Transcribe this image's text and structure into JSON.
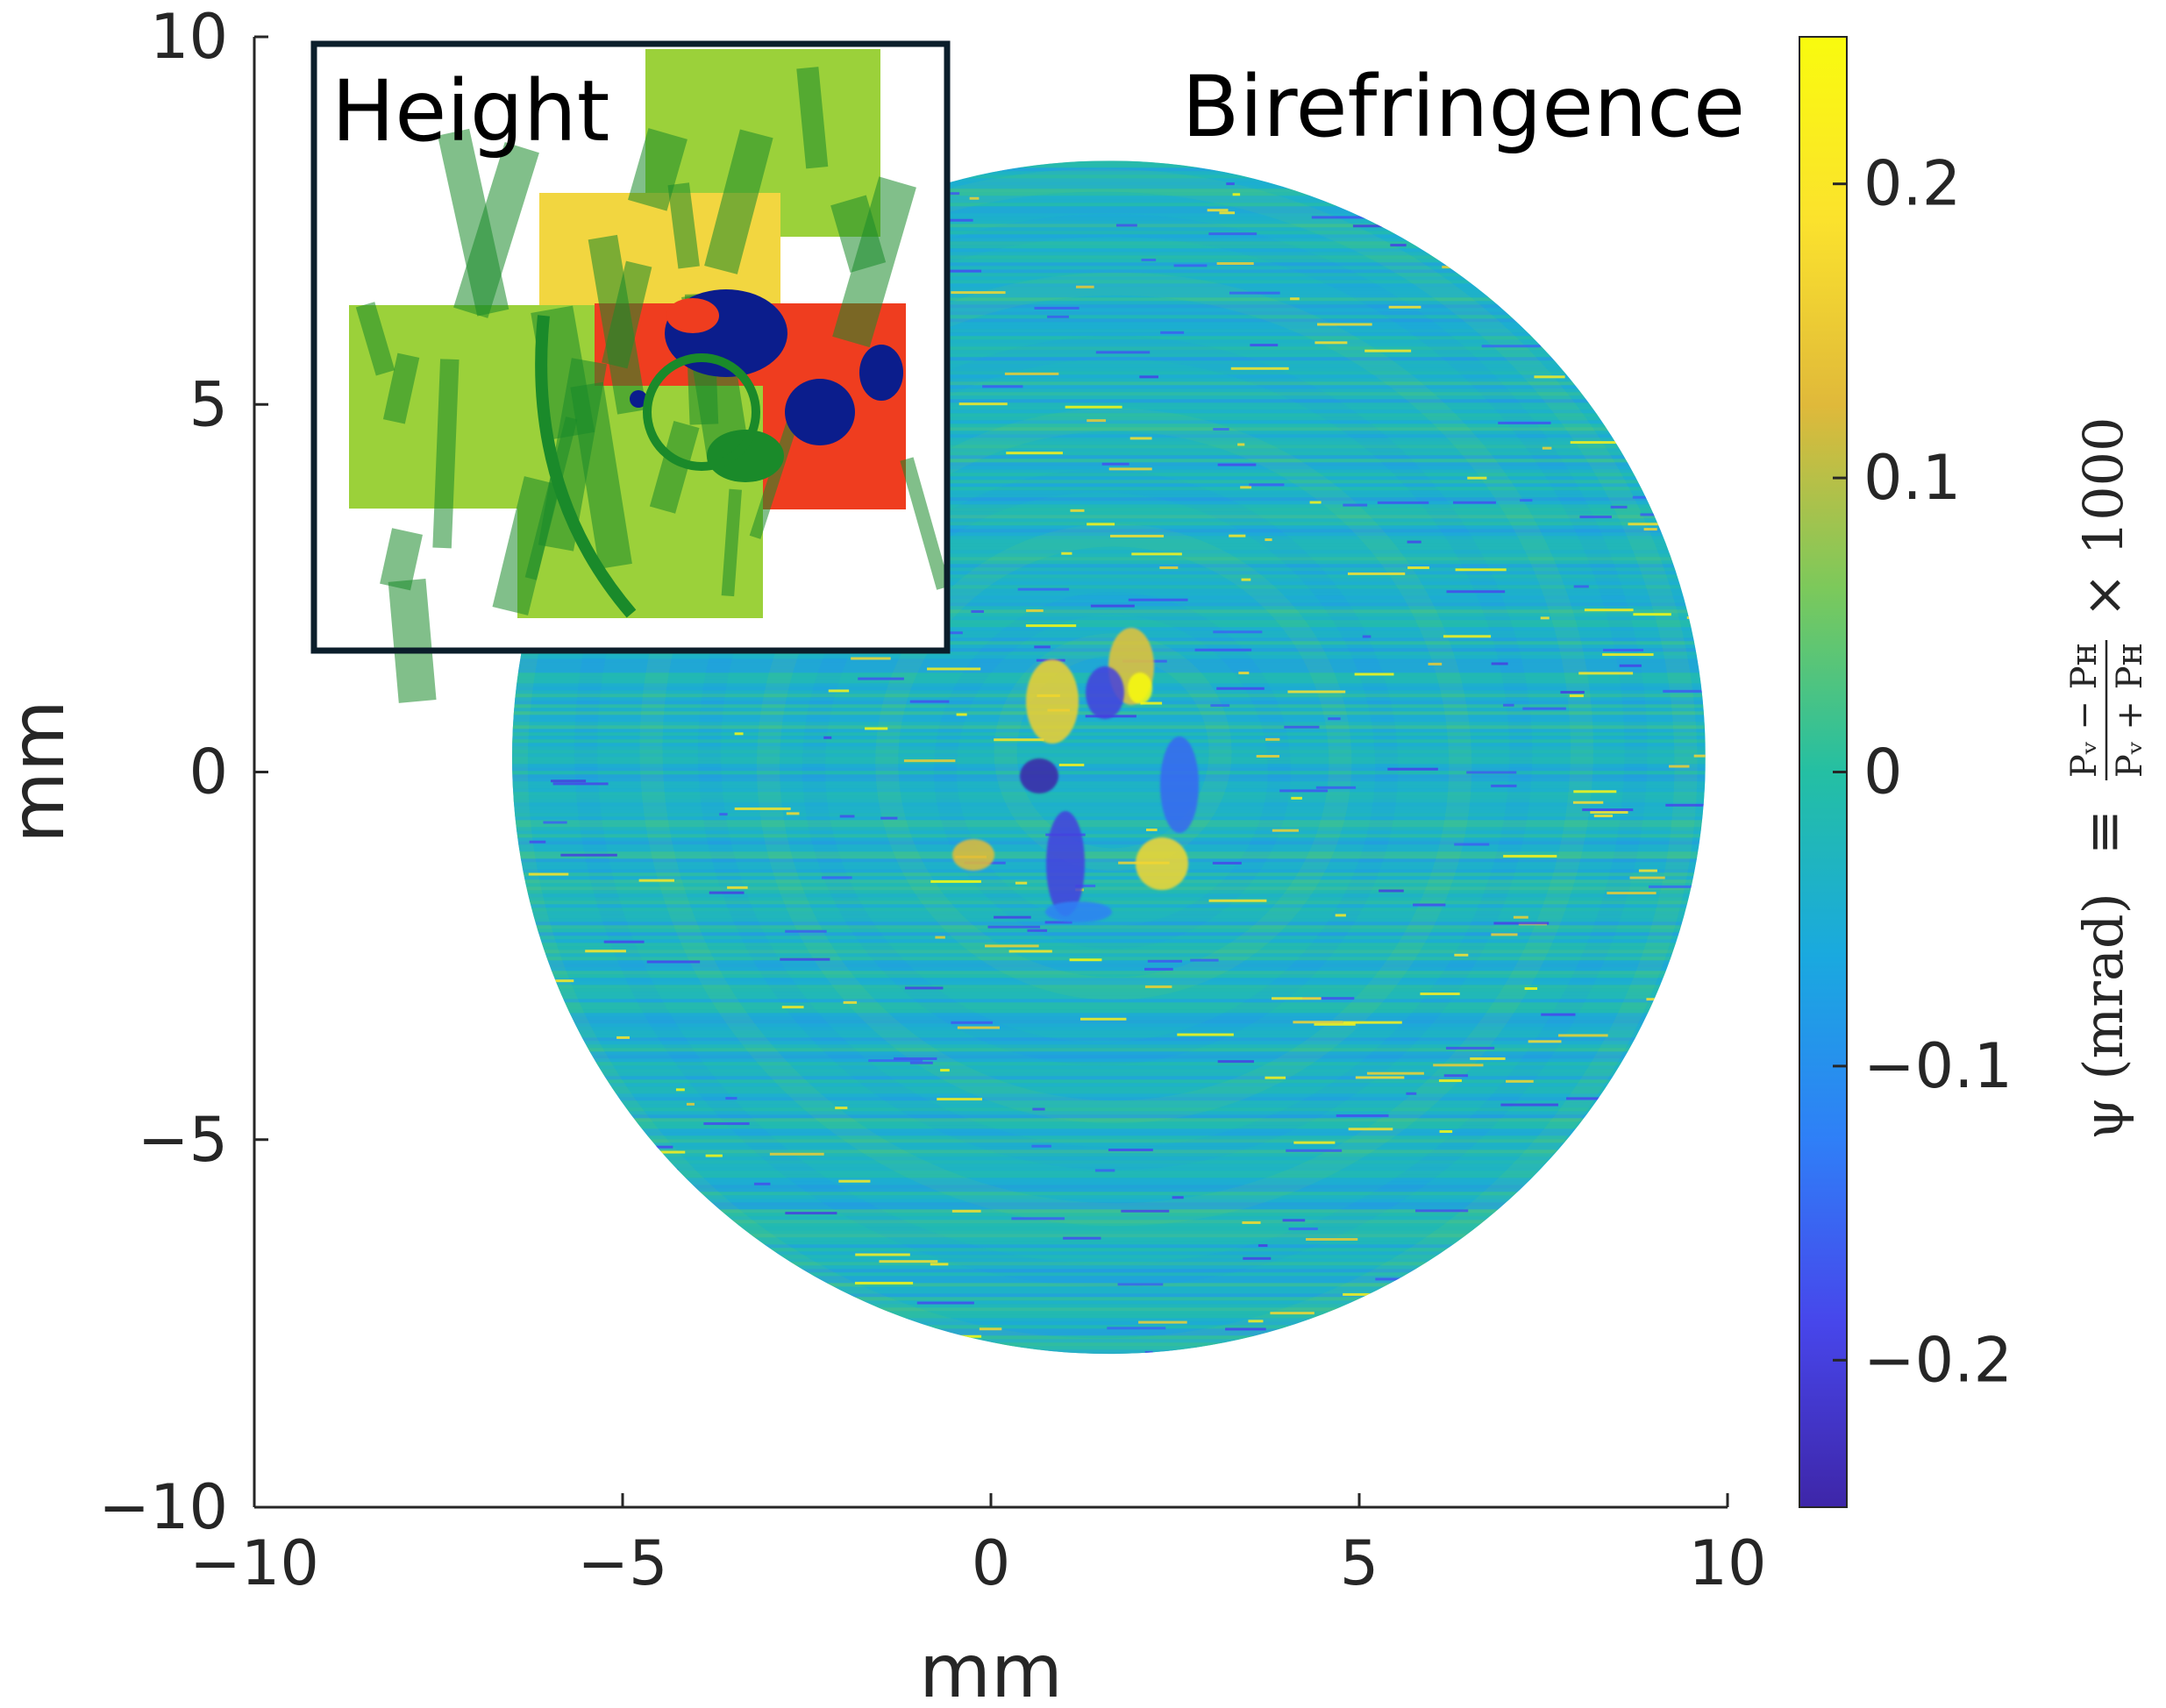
{
  "chart_data": {
    "type": "heatmap",
    "title": "Birefringence",
    "xlabel": "mm",
    "ylabel": "mm",
    "xlim": [
      -10,
      10
    ],
    "ylim": [
      -10,
      10
    ],
    "x_ticks": [
      -10,
      -5,
      0,
      5,
      10
    ],
    "y_ticks": [
      -10,
      -5,
      0,
      5,
      10
    ],
    "x_tick_labels": [
      "−10",
      "−5",
      "0",
      "5",
      "10"
    ],
    "y_tick_labels": [
      "−10",
      "−5",
      "0",
      "5",
      "10"
    ],
    "colorbar": {
      "colormap": "parula",
      "clim": [
        -0.25,
        0.25
      ],
      "ticks": [
        -0.2,
        -0.1,
        0,
        0.1,
        0.2
      ],
      "tick_labels": [
        "−0.2",
        "−0.1",
        "0",
        "0.1",
        "0.2"
      ],
      "label_symbol": "ψ (mrad)",
      "label_equiv": "≡",
      "label_numerator": "Pᵥ − Pʜ",
      "label_denominator": "Pᵥ + Pʜ",
      "label_scale": "× 1000",
      "colors": [
        "#3e26a8",
        "#4746eb",
        "#2f7ff7",
        "#1aa9df",
        "#24bfa3",
        "#7cc95b",
        "#e0b93a",
        "#fbe22d",
        "#f9fb0e"
      ]
    },
    "disk": {
      "center_mm": [
        1.6,
        0.2
      ],
      "radius_mm": 8.1,
      "field_level": -0.03
    },
    "inset": {
      "label": "Height",
      "colormap": "jet-like",
      "colors": [
        "#0b1d8c",
        "#1a8a2a",
        "#9bd13a",
        "#f2d640",
        "#ef3d1f"
      ]
    },
    "panel_label": "Birefringence"
  },
  "colors": {
    "axis": "#262626",
    "inset_border": "#0b1e2b",
    "background": "#ffffff"
  }
}
